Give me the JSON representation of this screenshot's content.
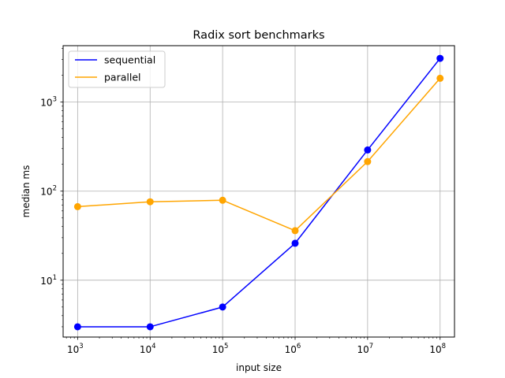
{
  "chart_data": {
    "type": "line",
    "title": "Radix sort benchmarks",
    "xlabel": "input size",
    "ylabel": "median ms",
    "x_scale": "log",
    "y_scale": "log",
    "x": [
      1000,
      10000,
      100000,
      1000000,
      10000000,
      100000000
    ],
    "x_tick_labels": [
      {
        "base": "10",
        "exp": "3"
      },
      {
        "base": "10",
        "exp": "4"
      },
      {
        "base": "10",
        "exp": "5"
      },
      {
        "base": "10",
        "exp": "6"
      },
      {
        "base": "10",
        "exp": "7"
      },
      {
        "base": "10",
        "exp": "8"
      }
    ],
    "y_ticks": [
      10,
      100,
      1000
    ],
    "y_tick_labels": [
      {
        "base": "10",
        "exp": "1"
      },
      {
        "base": "10",
        "exp": "2"
      },
      {
        "base": "10",
        "exp": "3"
      }
    ],
    "xlim": [
      631,
      158000000
    ],
    "ylim": [
      2.3,
      4300
    ],
    "grid": true,
    "legend_position": "upper left",
    "series": [
      {
        "name": "sequential",
        "color": "#0000ff",
        "values": [
          3.0,
          3.0,
          5.0,
          26,
          290,
          3100
        ]
      },
      {
        "name": "parallel",
        "color": "#ffa500",
        "values": [
          67,
          76,
          79,
          36,
          215,
          1850
        ]
      }
    ]
  }
}
